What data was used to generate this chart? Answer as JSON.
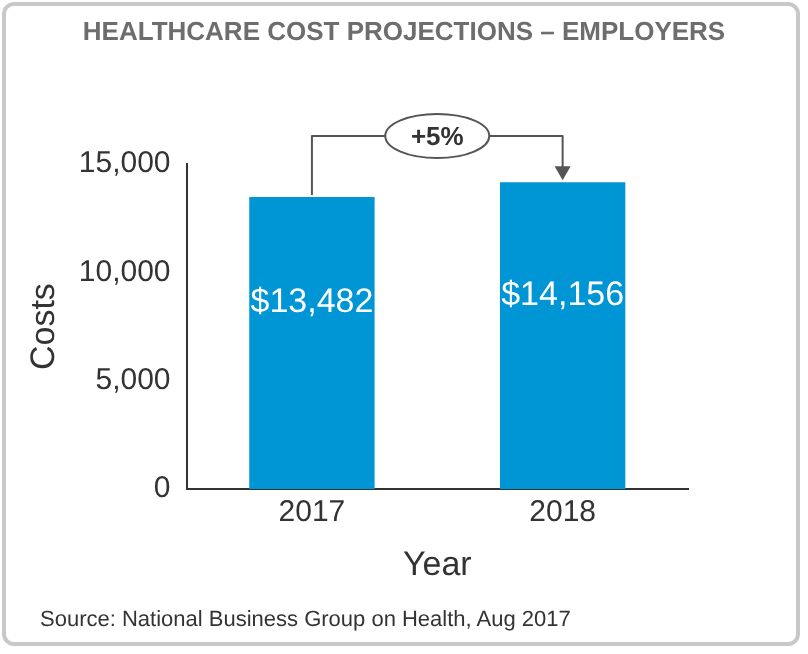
{
  "chart_data": {
    "type": "bar",
    "title": "HEALTHCARE COST PROJECTIONS – EMPLOYERS",
    "xlabel": "Year",
    "ylabel": "Costs",
    "categories": [
      "2017",
      "2018"
    ],
    "values": [
      13482,
      14156
    ],
    "color": "#0096d6",
    "value_labels": [
      "$13,482",
      "$14,156"
    ],
    "ylim": [
      0,
      15000
    ],
    "yticks": [
      {
        "value": 0,
        "label": "0"
      },
      {
        "value": 5000,
        "label": "5,000"
      },
      {
        "value": 10000,
        "label": "10,000"
      },
      {
        "value": 15000,
        "label": "15,000"
      }
    ],
    "grid": false,
    "legend": false,
    "annotations": [
      "+5%",
      "Source: National Business Group on Health, Aug 2017"
    ]
  }
}
